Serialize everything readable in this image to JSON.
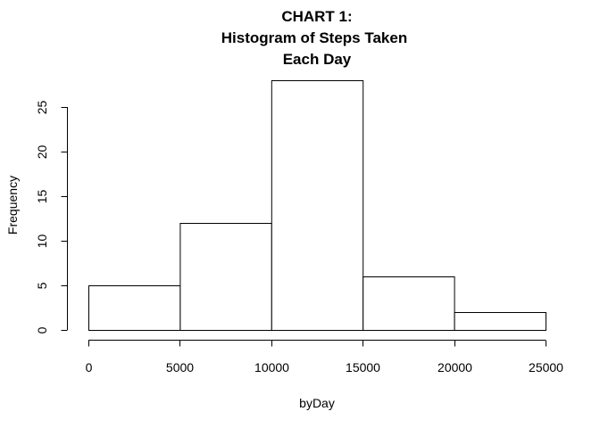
{
  "chart_data": {
    "type": "bar",
    "title_lines": [
      "CHART 1:",
      "Histogram of Steps Taken",
      "Each Day"
    ],
    "xlabel": "byDay",
    "ylabel": "Frequency",
    "bins": [
      {
        "from": 0,
        "to": 5000,
        "count": 5
      },
      {
        "from": 5000,
        "to": 10000,
        "count": 12
      },
      {
        "from": 10000,
        "to": 15000,
        "count": 28
      },
      {
        "from": 15000,
        "to": 20000,
        "count": 6
      },
      {
        "from": 20000,
        "to": 25000,
        "count": 2
      }
    ],
    "xlim": [
      0,
      25000
    ],
    "ylim": [
      0,
      28
    ],
    "x_ticks": [
      0,
      5000,
      10000,
      15000,
      20000,
      25000
    ],
    "y_ticks": [
      0,
      5,
      10,
      15,
      20,
      25
    ]
  }
}
